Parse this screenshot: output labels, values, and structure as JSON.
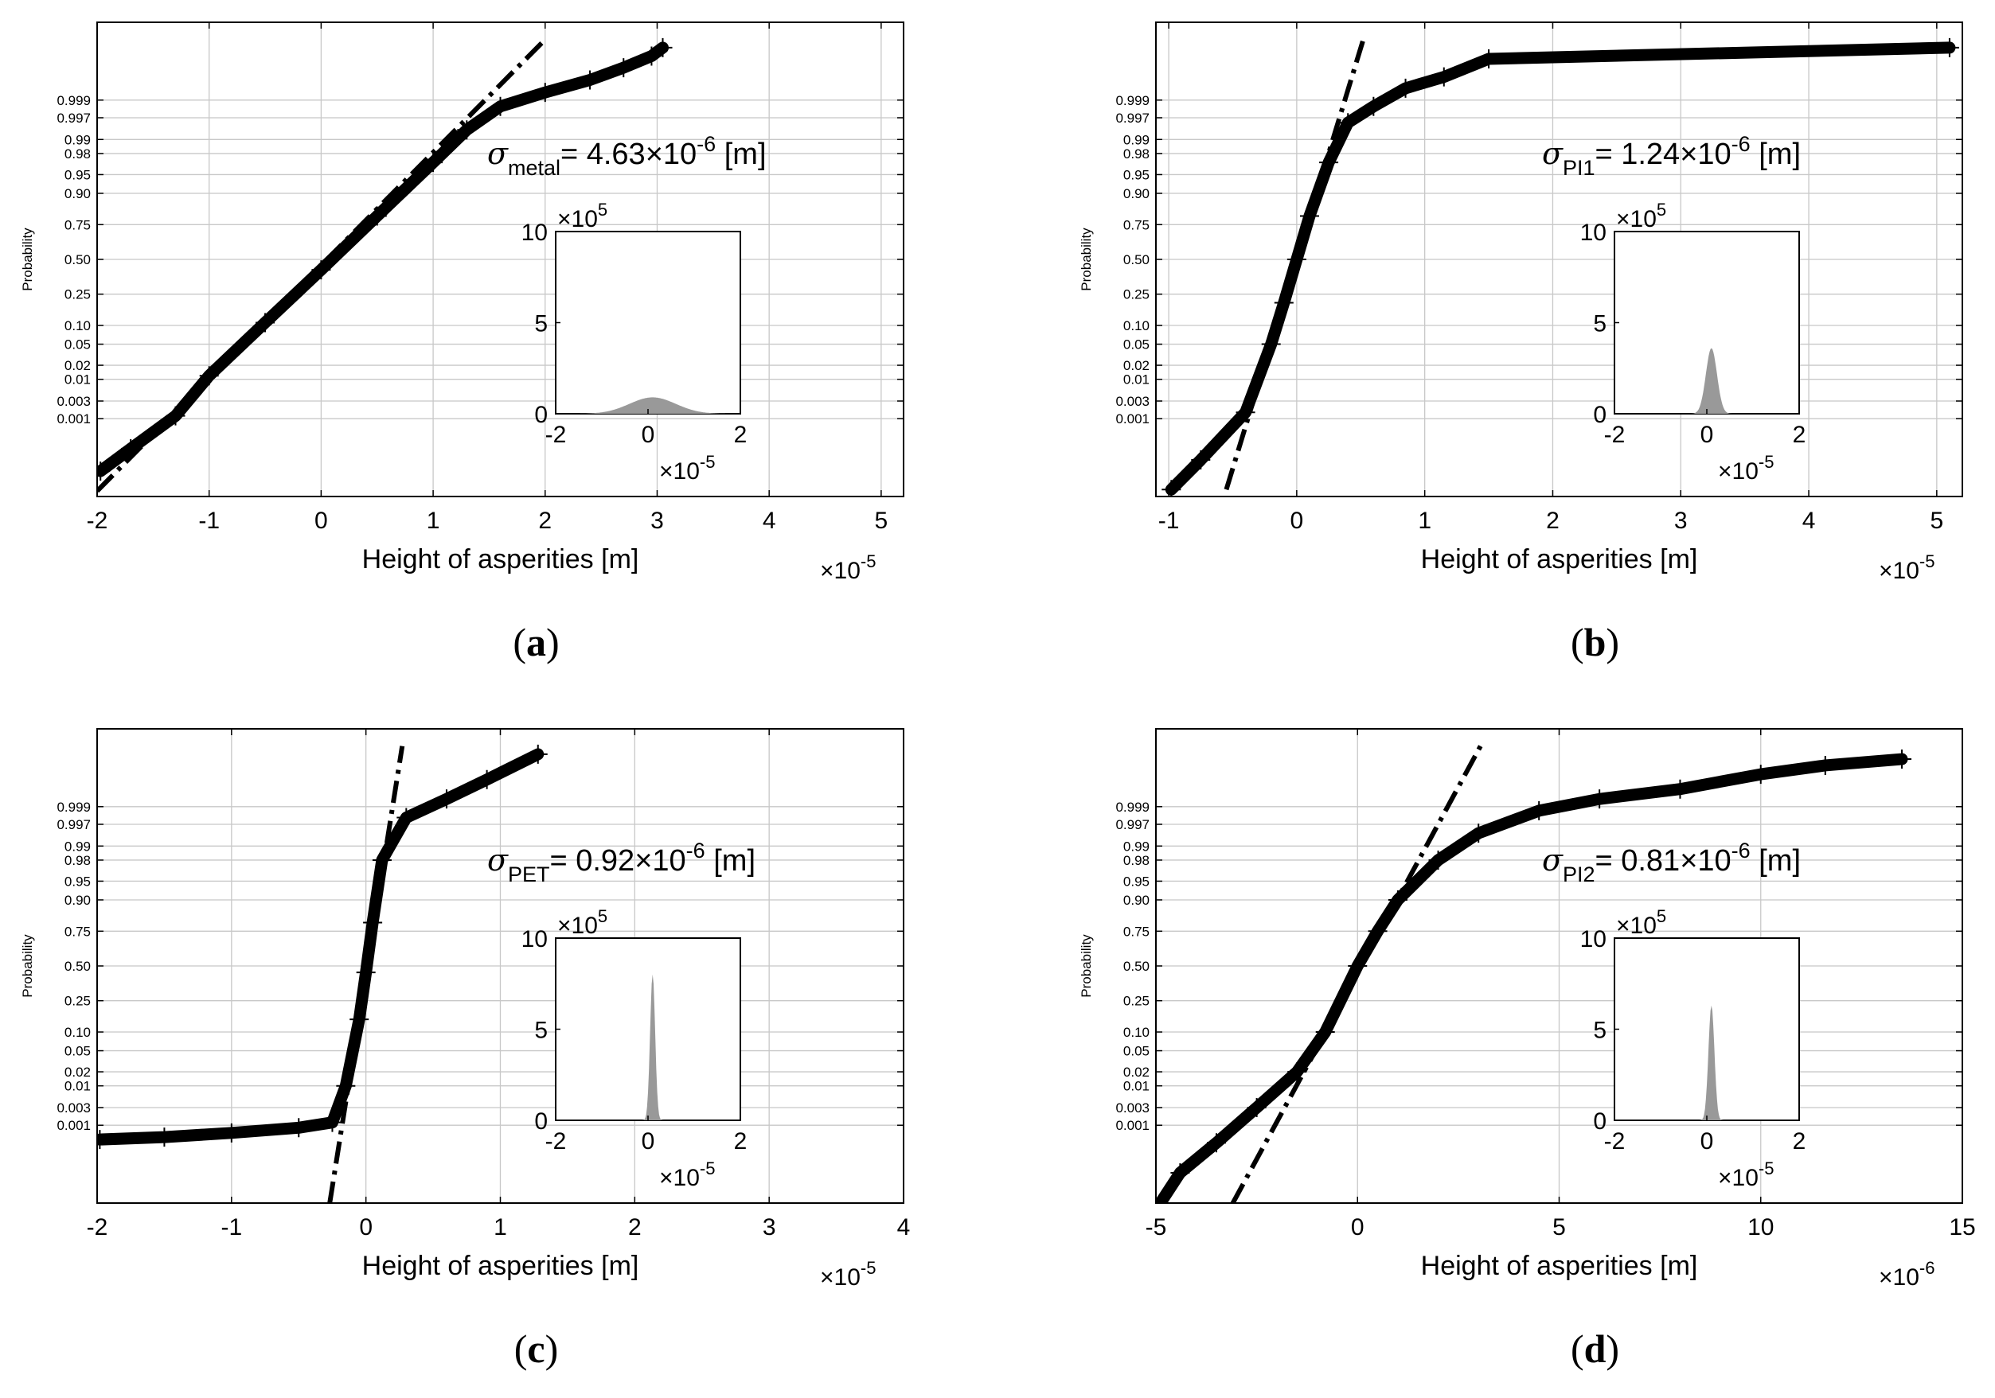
{
  "figure": {
    "panels": [
      {
        "id": "a",
        "caption": "(a)",
        "caption_parts": {
          "open": "(",
          "letter": "a",
          "close": ")"
        },
        "xlabel": "Height of asperities [m]",
        "ylabel": "Probability",
        "xlim": [
          -2,
          5.2
        ],
        "x_ticks": [
          "-2",
          "-1",
          "0",
          "1",
          "2",
          "3",
          "4",
          "5"
        ],
        "x_tick_values": [
          -2,
          -1,
          0,
          1,
          2,
          3,
          4,
          5
        ],
        "x_multiplier": {
          "base": "×10",
          "exp": "-5"
        },
        "prob_ticks": [
          "0.999",
          "0.997",
          "0.99",
          "0.98",
          "0.95",
          "0.90",
          "0.75",
          "0.50",
          "0.25",
          "0.10",
          "0.05",
          "0.02",
          "0.01",
          "0.003",
          "0.001"
        ],
        "sigma": {
          "symbol": "σ",
          "sub": "metal",
          "eq": "= 4.63",
          "times": "×10",
          "exp": "-6",
          "unit": " [m]"
        },
        "inset": {
          "y_ticks": [
            "10",
            "5",
            "0"
          ],
          "y_multiplier": {
            "base": "×10",
            "exp": "5"
          },
          "x_ticks": [
            "-2",
            "0",
            "2"
          ],
          "x_multiplier": {
            "base": "×10",
            "exp": "-5"
          },
          "peak": 0.9,
          "width": 0.5
        }
      },
      {
        "id": "b",
        "caption": "(b)",
        "caption_parts": {
          "open": "(",
          "letter": "b",
          "close": ")"
        },
        "xlabel": "Height of asperities [m]",
        "ylabel": "Probability",
        "xlim": [
          -1.1,
          5.2
        ],
        "x_ticks": [
          "-1",
          "0",
          "1",
          "2",
          "3",
          "4",
          "5"
        ],
        "x_tick_values": [
          -1,
          0,
          1,
          2,
          3,
          4,
          5
        ],
        "x_multiplier": {
          "base": "×10",
          "exp": "-5"
        },
        "prob_ticks": [
          "0.999",
          "0.997",
          "0.99",
          "0.98",
          "0.95",
          "0.90",
          "0.75",
          "0.50",
          "0.25",
          "0.10",
          "0.05",
          "0.02",
          "0.01",
          "0.003",
          "0.001"
        ],
        "sigma": {
          "symbol": "σ",
          "sub": "PI1",
          "eq": "= 1.24",
          "times": "×10",
          "exp": "-6",
          "unit": " [m]"
        },
        "inset": {
          "y_ticks": [
            "10",
            "5",
            "0"
          ],
          "y_multiplier": {
            "base": "×10",
            "exp": "5"
          },
          "x_ticks": [
            "-2",
            "0",
            "2"
          ],
          "x_multiplier": {
            "base": "×10",
            "exp": "-5"
          },
          "peak": 3.6,
          "width": 0.12
        }
      },
      {
        "id": "c",
        "caption": "(c)",
        "caption_parts": {
          "open": "(",
          "letter": "c",
          "close": ")"
        },
        "xlabel": "Height of asperities [m]",
        "ylabel": "Probability",
        "xlim": [
          -2,
          4
        ],
        "x_ticks": [
          "-2",
          "-1",
          "0",
          "1",
          "2",
          "3",
          "4"
        ],
        "x_tick_values": [
          -2,
          -1,
          0,
          1,
          2,
          3,
          4
        ],
        "x_multiplier": {
          "base": "×10",
          "exp": "-5"
        },
        "prob_ticks": [
          "0.999",
          "0.997",
          "0.99",
          "0.98",
          "0.95",
          "0.90",
          "0.75",
          "0.50",
          "0.25",
          "0.10",
          "0.05",
          "0.02",
          "0.01",
          "0.003",
          "0.001"
        ],
        "sigma": {
          "symbol": "σ",
          "sub": "PET",
          "eq": "= 0.92",
          "times": "×10",
          "exp": "-6",
          "unit": " [m]"
        },
        "inset": {
          "y_ticks": [
            "10",
            "5",
            "0"
          ],
          "y_multiplier": {
            "base": "×10",
            "exp": "5"
          },
          "x_ticks": [
            "-2",
            "0",
            "2"
          ],
          "x_multiplier": {
            "base": "×10",
            "exp": "-5"
          },
          "peak": 8.0,
          "width": 0.055
        }
      },
      {
        "id": "d",
        "caption": "(d)",
        "caption_parts": {
          "open": "(",
          "letter": "d",
          "close": ")"
        },
        "xlabel": "Height of asperities [m]",
        "ylabel": "Probability",
        "xlim": [
          -5,
          15
        ],
        "x_ticks": [
          "-5",
          "0",
          "5",
          "10",
          "15"
        ],
        "x_tick_values": [
          -5,
          0,
          5,
          10,
          15
        ],
        "x_multiplier": {
          "base": "×10",
          "exp": "-6"
        },
        "prob_ticks": [
          "0.999",
          "0.997",
          "0.99",
          "0.98",
          "0.95",
          "0.90",
          "0.75",
          "0.50",
          "0.25",
          "0.10",
          "0.05",
          "0.02",
          "0.01",
          "0.003",
          "0.001"
        ],
        "sigma": {
          "symbol": "σ",
          "sub": "PI2",
          "eq": "= 0.81",
          "times": "×10",
          "exp": "-6",
          "unit": " [m]"
        },
        "inset": {
          "y_ticks": [
            "10",
            "5",
            "0"
          ],
          "y_multiplier": {
            "base": "×10",
            "exp": "5"
          },
          "x_ticks": [
            "-2",
            "0",
            "2"
          ],
          "x_multiplier": {
            "base": "×10",
            "exp": "-5"
          },
          "peak": 6.3,
          "width": 0.065
        }
      }
    ]
  },
  "chart_data": [
    {
      "type": "scatter",
      "title": "(a)",
      "xlabel": "Height of asperities [m] (×10^-5)",
      "ylabel": "Probability",
      "xlim": [
        -2,
        5.2
      ],
      "y_scale": "normal probability",
      "y_tick_labels": [
        0.999,
        0.997,
        0.99,
        0.98,
        0.95,
        0.9,
        0.75,
        0.5,
        0.25,
        0.1,
        0.05,
        0.02,
        0.01,
        0.003,
        0.001
      ],
      "annotation": "σ_metal = 4.63×10^-6 [m]",
      "series": [
        {
          "name": "data (+ markers)",
          "x": [
            -1.97,
            -1.7,
            -1.3,
            -1.0,
            -0.5,
            0,
            0.5,
            1.0,
            1.3,
            1.6,
            2.0,
            2.4,
            2.7,
            2.95,
            3.05
          ],
          "y": [
            2e-05,
            0.00012,
            0.0012,
            0.012,
            0.11,
            0.42,
            0.8,
            0.97,
            0.994,
            0.9985,
            0.9994,
            0.99975,
            0.9999,
            0.99996,
            0.99998
          ]
        },
        {
          "name": "normal fit (dash-dot)",
          "x": [
            -2.0,
            2.0
          ],
          "y": [
            3.5e-06,
            0.99999
          ]
        }
      ]
    },
    {
      "type": "scatter",
      "title": "(b)",
      "xlabel": "Height of asperities [m] (×10^-5)",
      "ylabel": "Probability",
      "xlim": [
        -1.1,
        5.2
      ],
      "y_scale": "normal probability",
      "y_tick_labels": [
        0.999,
        0.997,
        0.99,
        0.98,
        0.95,
        0.9,
        0.75,
        0.5,
        0.25,
        0.1,
        0.05,
        0.02,
        0.01,
        0.003,
        0.001
      ],
      "annotation": "σ_PI1 = 1.24×10^-6 [m]",
      "series": [
        {
          "name": "data (+ markers)",
          "x": [
            -0.98,
            -0.75,
            -0.4,
            -0.2,
            -0.1,
            0,
            0.1,
            0.25,
            0.4,
            0.6,
            0.85,
            1.15,
            1.5,
            5.1
          ],
          "y": [
            4e-06,
            5e-05,
            0.0015,
            0.05,
            0.2,
            0.5,
            0.8,
            0.97,
            0.996,
            0.9985,
            0.99955,
            0.9998,
            0.99995,
            0.99998
          ]
        },
        {
          "name": "normal fit (dash-dot)",
          "x": [
            -0.55,
            0.52
          ],
          "y": [
            4e-06,
            0.99999
          ]
        }
      ]
    },
    {
      "type": "scatter",
      "title": "(c)",
      "xlabel": "Height of asperities [m] (×10^-5)",
      "ylabel": "Probability",
      "xlim": [
        -2,
        4
      ],
      "y_scale": "normal probability",
      "y_tick_labels": [
        0.999,
        0.997,
        0.99,
        0.98,
        0.95,
        0.9,
        0.75,
        0.5,
        0.25,
        0.1,
        0.05,
        0.02,
        0.01,
        0.003,
        0.001
      ],
      "annotation": "σ_PET = 0.92×10^-6 [m]",
      "series": [
        {
          "name": "data (+ markers)",
          "x": [
            -1.98,
            -1.5,
            -1.0,
            -0.5,
            -0.25,
            -0.15,
            -0.05,
            0,
            0.05,
            0.12,
            0.3,
            0.6,
            0.9,
            1.28
          ],
          "y": [
            0.00038,
            0.00045,
            0.0006,
            0.00085,
            0.0012,
            0.01,
            0.15,
            0.45,
            0.8,
            0.98,
            0.998,
            0.9994,
            0.99985,
            0.99998
          ]
        },
        {
          "name": "normal fit (dash-dot)",
          "x": [
            -0.27,
            0.27
          ],
          "y": [
            2e-06,
            0.99999
          ]
        }
      ]
    },
    {
      "type": "scatter",
      "title": "(d)",
      "xlabel": "Height of asperities [m] (×10^-6)",
      "ylabel": "Probability",
      "xlim": [
        -5,
        15
      ],
      "y_scale": "normal probability",
      "y_tick_labels": [
        0.999,
        0.997,
        0.99,
        0.98,
        0.95,
        0.9,
        0.75,
        0.5,
        0.25,
        0.1,
        0.05,
        0.02,
        0.01,
        0.003,
        0.001
      ],
      "annotation": "σ_PI2 = 0.81×10^-6 [m]",
      "series": [
        {
          "name": "data (+ markers)",
          "x": [
            -4.9,
            -4.4,
            -3.5,
            -2.5,
            -1.5,
            -0.8,
            0,
            0.5,
            1.0,
            2.0,
            3.0,
            4.5,
            6.0,
            8.0,
            10.0,
            11.6,
            13.5
          ],
          "y": [
            2e-06,
            3e-05,
            0.0003,
            0.003,
            0.02,
            0.1,
            0.5,
            0.75,
            0.9,
            0.98,
            0.995,
            0.9987,
            0.9994,
            0.9997,
            0.9999,
            0.99995,
            0.99997
          ]
        },
        {
          "name": "normal fit (dash-dot)",
          "x": [
            -3.1,
            3.05
          ],
          "y": [
            2e-06,
            0.99999
          ]
        }
      ]
    }
  ]
}
